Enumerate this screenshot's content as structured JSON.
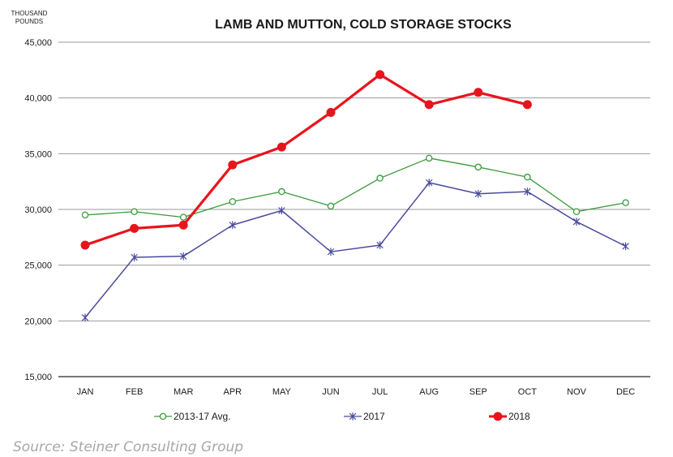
{
  "chart_data": {
    "type": "line",
    "title": "LAMB AND MUTTON, COLD STORAGE STOCKS",
    "ylabel": "THOUSAND POUNDS",
    "xlabel": "",
    "categories": [
      "JAN",
      "FEB",
      "MAR",
      "APR",
      "MAY",
      "JUN",
      "JUL",
      "AUG",
      "SEP",
      "OCT",
      "NOV",
      "DEC"
    ],
    "ylim": [
      15000,
      45000
    ],
    "yticks": [
      "15,000",
      "20,000",
      "25,000",
      "30,000",
      "35,000",
      "40,000",
      "45,000"
    ],
    "ytick_values": [
      15000,
      20000,
      25000,
      30000,
      35000,
      40000,
      45000
    ],
    "grid": true,
    "legend_position": "bottom",
    "series": [
      {
        "name": "2013-17 Avg.",
        "color": "#3a9a3a",
        "marker": "open-circle",
        "values": [
          29500,
          29800,
          29300,
          30700,
          31600,
          30300,
          32800,
          34600,
          33800,
          32900,
          29800,
          30600
        ]
      },
      {
        "name": "2017",
        "color": "#4a4a9c",
        "marker": "x",
        "values": [
          20300,
          25700,
          25800,
          28600,
          29900,
          26200,
          26800,
          32400,
          31400,
          31600,
          28900,
          26700
        ]
      },
      {
        "name": "2018",
        "color": "#e8141c",
        "marker": "filled-circle",
        "values": [
          26800,
          28300,
          28600,
          34000,
          35600,
          38700,
          42100,
          39400,
          40500,
          39400,
          null,
          null
        ]
      }
    ]
  },
  "source": "Source: Steiner Consulting Group"
}
